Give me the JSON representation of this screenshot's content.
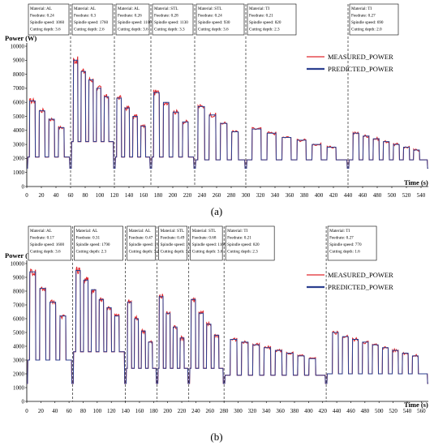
{
  "chart_data": [
    {
      "type": "line",
      "caption": "(a)",
      "ylabel": "Power (W)",
      "xlabel": "Time (s)",
      "xlim": [
        0,
        550
      ],
      "ylim": [
        0,
        10000
      ],
      "x_ticks": [
        0,
        20,
        40,
        60,
        80,
        100,
        120,
        140,
        160,
        180,
        200,
        220,
        240,
        260,
        280,
        300,
        320,
        340,
        360,
        380,
        400,
        420,
        440,
        460,
        480,
        500,
        520,
        540
      ],
      "y_ticks": [
        0,
        1000,
        2000,
        3000,
        4000,
        5000,
        6000,
        7000,
        8000,
        9000,
        10000
      ],
      "grid": false,
      "legend_position": "top-right",
      "series": [
        {
          "name": "MEASURED_POWER",
          "color": "#e0282e"
        },
        {
          "name": "PREDICTED_POWER",
          "color": "#2b3f8f"
        }
      ],
      "segment_dividers": [
        60,
        120,
        170,
        230,
        300,
        440
      ],
      "annotations": [
        {
          "material": "Material: AL",
          "feedrate": "Feedrate:  0.24",
          "spindle": "Spindle speed: 1060",
          "depth": "Cutting depth: 3.6"
        },
        {
          "material": "Material: AL",
          "feedrate": "Feedrate:  0.3",
          "spindle": "Spindle speed: 1760",
          "depth": "Cutting depth: 2.6"
        },
        {
          "material": "Material: AL",
          "feedrate": "Feedrate:  0.26",
          "spindle": "Spindle speed: 1100",
          "depth": "Cutting depth: 3.6"
        },
        {
          "material": "Material: STL",
          "feedrate": "Feedrate:  0.28",
          "spindle": "Spindle speed: 1130",
          "depth": "Cutting depth: 3.3"
        },
        {
          "material": "Material: STL",
          "feedrate": "Feedrate:  0.24",
          "spindle": "Spindle speed: 930",
          "depth": "Cutting depth: 3.6"
        },
        {
          "material": "Material: TI",
          "feedrate": "Feedrate:  0.21",
          "spindle": "Spindle speed: 820",
          "depth": "Cutting depth: 2.3"
        },
        {
          "material": "Material: TI",
          "feedrate": "Feedrate:  0.27",
          "spindle": "Spindle speed: 690",
          "depth": "Cutting depth: 2.0"
        }
      ],
      "segments": [
        {
          "start": 0,
          "end": 60,
          "base": 2100,
          "peaks": [
            6100,
            5400,
            4800,
            4200
          ],
          "idle": 1300
        },
        {
          "start": 60,
          "end": 120,
          "base": 3200,
          "peaks": [
            9000,
            8200,
            7600,
            7000,
            6400
          ],
          "idle": 1300
        },
        {
          "start": 120,
          "end": 170,
          "base": 2100,
          "peaks": [
            6300,
            5600,
            5000,
            4300
          ],
          "idle": 1300
        },
        {
          "start": 170,
          "end": 230,
          "base": 2100,
          "peaks": [
            6700,
            6000,
            5300,
            4600
          ],
          "idle": 1300
        },
        {
          "start": 230,
          "end": 300,
          "base": 1900,
          "peaks": [
            5700,
            5100,
            4500,
            3900
          ],
          "idle": 1300
        },
        {
          "start": 300,
          "end": 440,
          "base": 1900,
          "peaks": [
            4100,
            3800,
            3500,
            3300,
            3000,
            2800
          ],
          "idle": 1300
        },
        {
          "start": 440,
          "end": 550,
          "base": 1900,
          "peaks": [
            3800,
            3600,
            3400,
            3200,
            3000,
            2800,
            2600
          ],
          "idle": 1300
        }
      ]
    },
    {
      "type": "line",
      "caption": "(b)",
      "ylabel": "Power (W)",
      "xlabel": "Time (s)",
      "xlim": [
        0,
        570
      ],
      "ylim": [
        0,
        10000
      ],
      "x_ticks": [
        0,
        20,
        40,
        60,
        80,
        100,
        120,
        140,
        160,
        180,
        200,
        220,
        240,
        260,
        280,
        300,
        320,
        340,
        360,
        380,
        400,
        420,
        440,
        460,
        480,
        500,
        520,
        540,
        560
      ],
      "y_ticks": [
        0,
        1000,
        2000,
        3000,
        4000,
        5000,
        6000,
        7000,
        8000,
        9000,
        10000
      ],
      "grid": false,
      "legend_position": "top-right",
      "series": [
        {
          "name": "MEASURED_POWER",
          "color": "#e0282e"
        },
        {
          "name": "PREDICTED_POWER",
          "color": "#2b3f8f"
        }
      ],
      "segment_dividers": [
        65,
        140,
        185,
        230,
        280,
        425
      ],
      "annotations": [
        {
          "material": "Material: AL",
          "feedrate": "Feedrate:  0.17",
          "spindle": "Spindle speed: 1600",
          "depth": "Cutting depth: 3.6"
        },
        {
          "material": "Material: AL",
          "feedrate": "Feedrate:  0.31",
          "spindle": "Spindle speed: 1790",
          "depth": "Cutting depth: 2.3"
        },
        {
          "material": "Material: AL",
          "feedrate": "Feedrate:  0.47",
          "spindle": "Spindle speed: 1120",
          "depth": "Cutting depth: 3.2"
        },
        {
          "material": "Material: STL",
          "feedrate": "Feedrate:  0.49",
          "spindle": "Spindle speed: 1160",
          "depth": "Cutting depth: 3.3"
        },
        {
          "material": "Material: STL",
          "feedrate": "Feedrate:  0.68",
          "spindle": "Spindle speed: 1166",
          "depth": "Cutting depth: 3.6"
        },
        {
          "material": "Material: TI",
          "feedrate": "Feedrate:  0.21",
          "spindle": "Spindle speed: 820",
          "depth": "Cutting depth: 2.3"
        },
        {
          "material": "Material: TI",
          "feedrate": "Feedrate:  0.27",
          "spindle": "Spindle speed: 770",
          "depth": "Cutting depth: 1.6"
        }
      ],
      "segments": [
        {
          "start": 0,
          "end": 65,
          "base": 3000,
          "peaks": [
            9400,
            8200,
            7200,
            6200
          ],
          "idle": 1300
        },
        {
          "start": 65,
          "end": 140,
          "base": 3600,
          "peaks": [
            9500,
            8800,
            8100,
            7400,
            6800,
            6200
          ],
          "idle": 1300
        },
        {
          "start": 140,
          "end": 185,
          "base": 2400,
          "peaks": [
            7200,
            6000,
            5100,
            4300
          ],
          "idle": 1300
        },
        {
          "start": 185,
          "end": 230,
          "base": 2400,
          "peaks": [
            7600,
            6400,
            5400,
            4600
          ],
          "idle": 1300
        },
        {
          "start": 230,
          "end": 280,
          "base": 2400,
          "peaks": [
            7400,
            6400,
            5600,
            4800
          ],
          "idle": 1300
        },
        {
          "start": 280,
          "end": 425,
          "base": 1900,
          "peaks": [
            4500,
            4300,
            4100,
            3900,
            3700,
            3500,
            3300,
            3100
          ],
          "idle": 1300
        },
        {
          "start": 425,
          "end": 570,
          "base": 2000,
          "peaks": [
            5000,
            4700,
            4500,
            4300,
            4100,
            3900,
            3700,
            3500,
            3300
          ],
          "idle": 1300
        }
      ]
    }
  ]
}
